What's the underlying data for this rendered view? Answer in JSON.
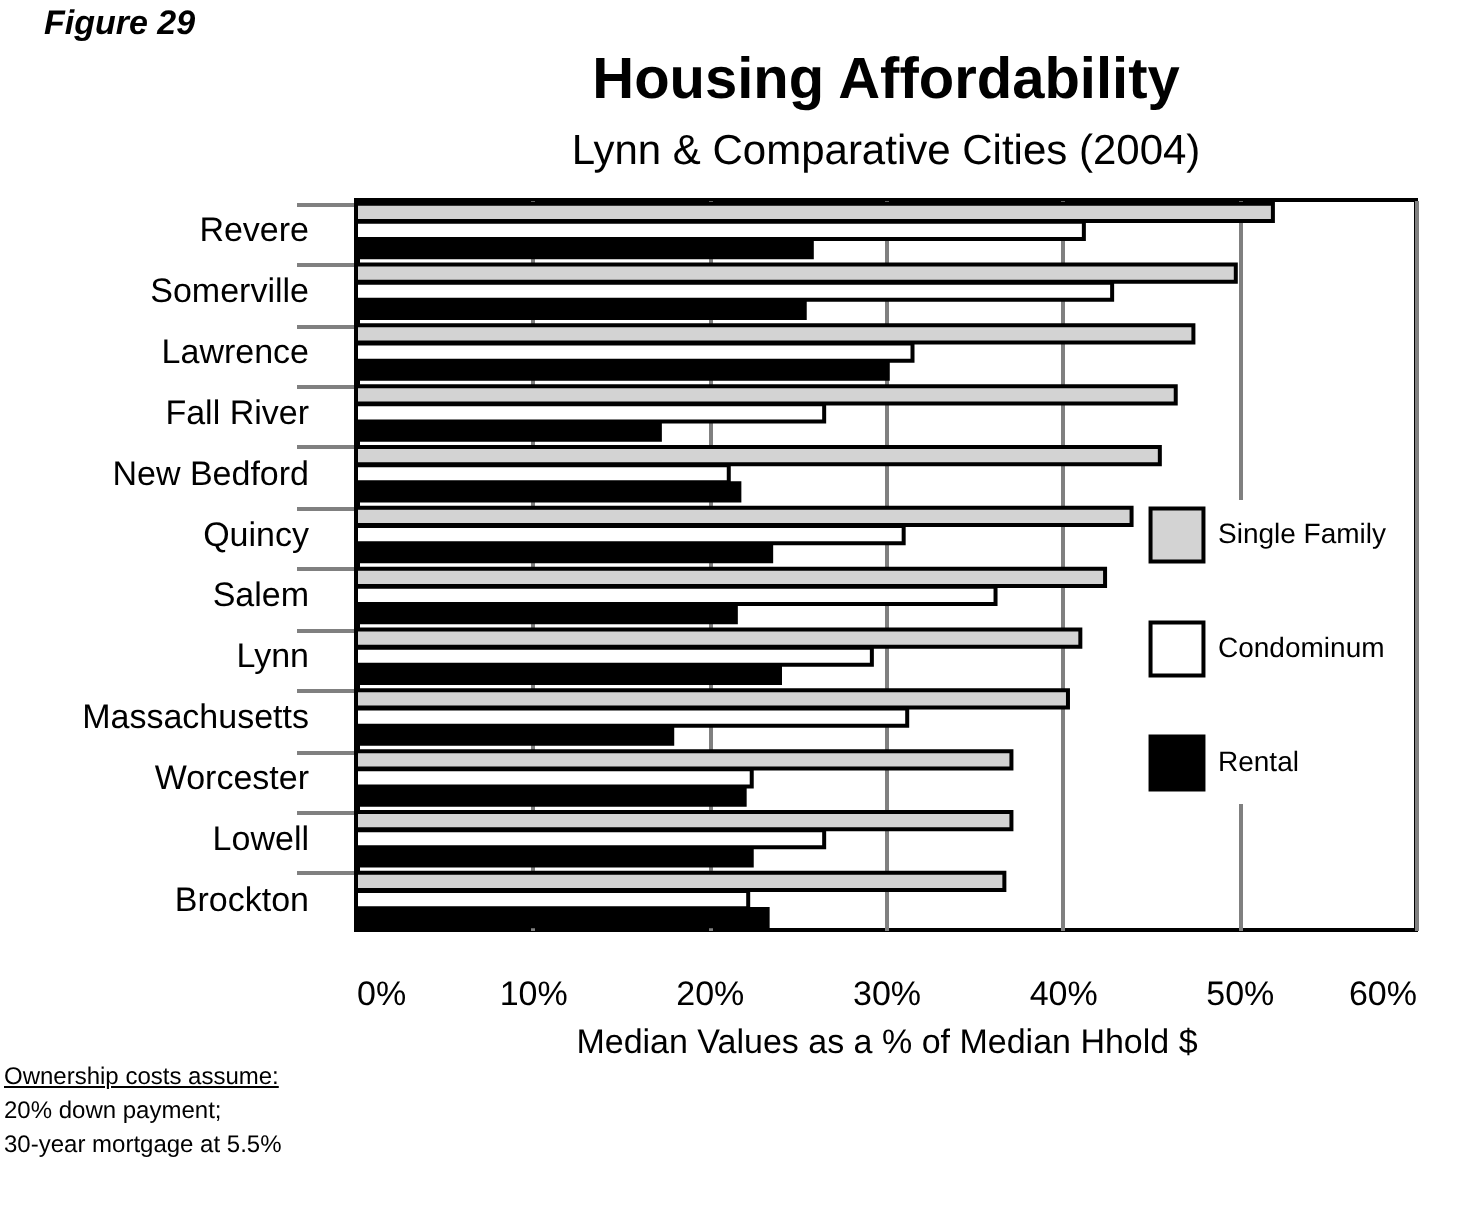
{
  "chart_data": {
    "type": "bar",
    "orientation": "horizontal",
    "title": "Housing Affordability",
    "subtitle": "Lynn & Comparative Cities (2004)",
    "xlabel": "Median Values as a % of Median Hhold $",
    "annotations": [
      "Figure 29",
      "Ownership costs assume:",
      "20% down payment;",
      "30-year mortgage at 5.5%"
    ],
    "categories": [
      "Revere",
      "Somerville",
      "Lawrence",
      "Fall River",
      "New Bedford",
      "Quincy",
      "Salem",
      "Lynn",
      "Massachusetts",
      "Worcester",
      "Lowell",
      "Brockton"
    ],
    "series": [
      {
        "name": "Single Family",
        "color": "#d3d3d3",
        "values": [
          51.9,
          49.8,
          47.4,
          46.4,
          45.5,
          43.9,
          42.4,
          41.0,
          40.3,
          37.1,
          37.1,
          36.7
        ]
      },
      {
        "name": "Condominum",
        "color": "#ffffff",
        "values": [
          41.2,
          42.8,
          31.5,
          26.5,
          21.1,
          31.0,
          36.2,
          29.2,
          31.2,
          22.4,
          26.5,
          22.2
        ]
      },
      {
        "name": "Rental",
        "color": "#000000",
        "values": [
          25.8,
          25.4,
          30.1,
          17.2,
          21.7,
          23.5,
          21.5,
          24.0,
          17.9,
          22.0,
          22.4,
          23.3
        ]
      }
    ],
    "xlim": [
      0,
      60
    ],
    "xticks": [
      {
        "value": 0,
        "label": "0%"
      },
      {
        "value": 10,
        "label": "10%"
      },
      {
        "value": 20,
        "label": "20%"
      },
      {
        "value": 30,
        "label": "30%"
      },
      {
        "value": 40,
        "label": "40%"
      },
      {
        "value": 50,
        "label": "50%"
      },
      {
        "value": 60,
        "label": "60%"
      }
    ],
    "grid": "x",
    "legend": "right"
  }
}
